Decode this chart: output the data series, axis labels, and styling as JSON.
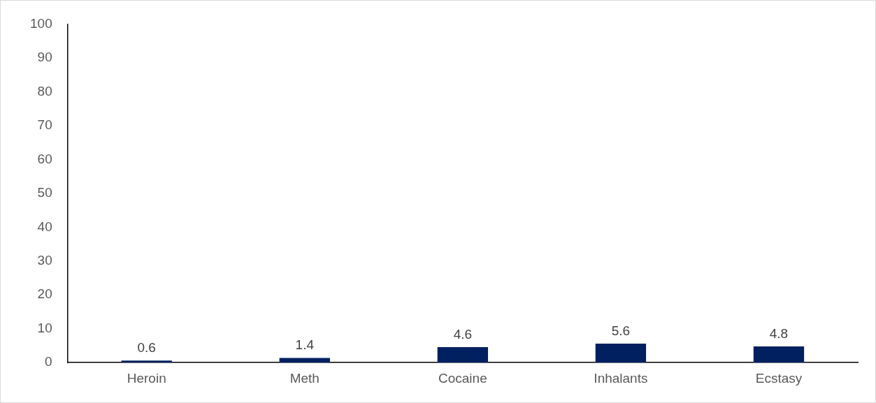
{
  "chart_data": {
    "type": "bar",
    "categories": [
      "Heroin",
      "Meth",
      "Cocaine",
      "Inhalants",
      "Ecstasy"
    ],
    "values": [
      0.6,
      1.4,
      4.6,
      5.6,
      4.8
    ],
    "color": "#002060",
    "ylim": [
      0,
      100
    ],
    "yticks": [
      0,
      10,
      20,
      30,
      40,
      50,
      60,
      70,
      80,
      90,
      100
    ],
    "grid": false,
    "legend": false,
    "data_labels": true
  }
}
